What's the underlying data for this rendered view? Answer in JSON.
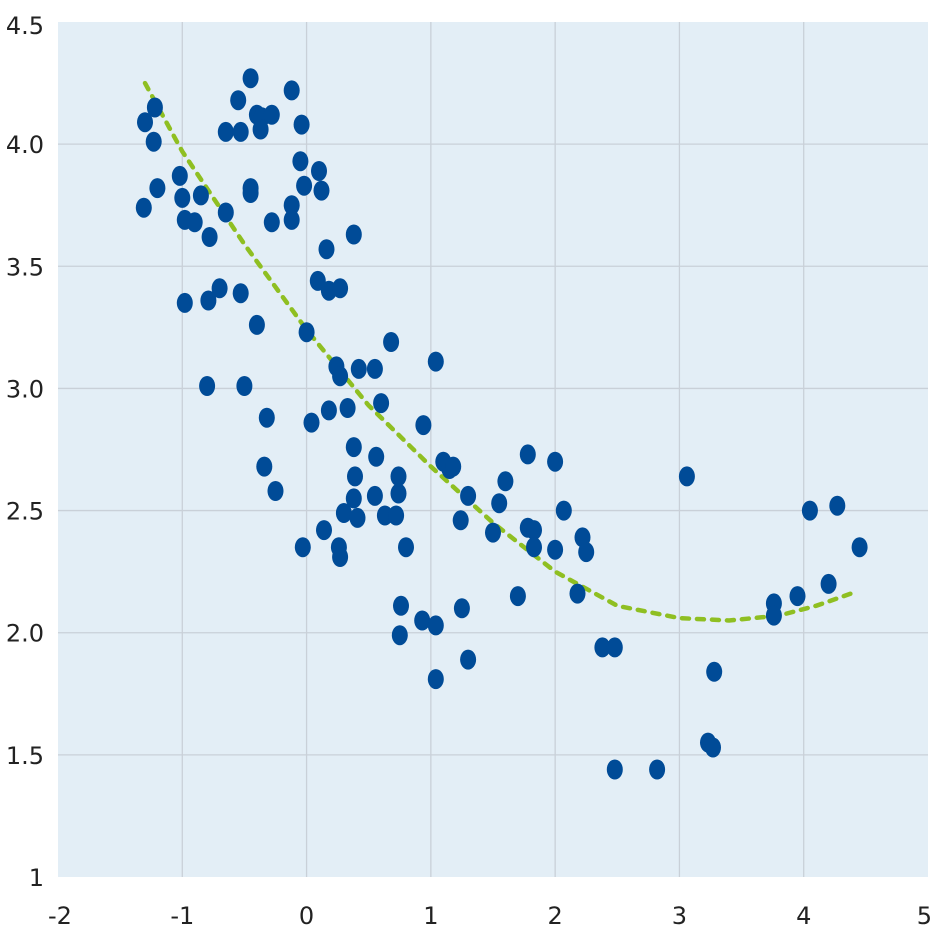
{
  "chart_data": {
    "type": "scatter",
    "title": "",
    "xlabel": "",
    "ylabel": "",
    "xlim": [
      -2,
      5
    ],
    "ylim": [
      1,
      4.5
    ],
    "x_ticks": [
      -2,
      -1,
      0,
      1,
      2,
      3,
      4,
      5
    ],
    "x_tick_labels": [
      "-2",
      "-1",
      "0",
      "1",
      "2",
      "3",
      "4",
      "5"
    ],
    "y_ticks": [
      1,
      1.5,
      2,
      2.5,
      3,
      3.5,
      4,
      4.5
    ],
    "y_tick_labels": [
      "1",
      "1.5",
      "2.0",
      "2.5",
      "3.0",
      "3.5",
      "4.0",
      "4.5"
    ],
    "grid": true,
    "colors": {
      "plot_background": "#e3eef6",
      "points": "#004b97",
      "trend": "#8fbf22",
      "grid": "#c9d0d8"
    },
    "points": [
      [
        -1.3,
        4.09
      ],
      [
        -1.22,
        4.15
      ],
      [
        -1.23,
        4.01
      ],
      [
        -1.2,
        3.82
      ],
      [
        -1.31,
        3.74
      ],
      [
        -1.02,
        3.87
      ],
      [
        -1.0,
        3.78
      ],
      [
        -0.98,
        3.69
      ],
      [
        -0.9,
        3.68
      ],
      [
        -0.85,
        3.79
      ],
      [
        -0.78,
        3.62
      ],
      [
        -0.98,
        3.35
      ],
      [
        -0.79,
        3.36
      ],
      [
        -0.7,
        3.41
      ],
      [
        -0.8,
        3.01
      ],
      [
        -0.65,
        3.72
      ],
      [
        -0.65,
        4.05
      ],
      [
        -0.53,
        4.05
      ],
      [
        -0.55,
        4.18
      ],
      [
        -0.45,
        4.27
      ],
      [
        -0.4,
        4.12
      ],
      [
        -0.36,
        4.11
      ],
      [
        -0.37,
        4.06
      ],
      [
        -0.28,
        4.12
      ],
      [
        -0.12,
        4.22
      ],
      [
        -0.45,
        3.82
      ],
      [
        -0.45,
        3.8
      ],
      [
        -0.28,
        3.68
      ],
      [
        -0.12,
        3.75
      ],
      [
        -0.12,
        3.69
      ],
      [
        -0.04,
        4.08
      ],
      [
        -0.05,
        3.93
      ],
      [
        -0.02,
        3.83
      ],
      [
        0.1,
        3.89
      ],
      [
        0.12,
        3.81
      ],
      [
        -0.53,
        3.39
      ],
      [
        -0.4,
        3.26
      ],
      [
        -0.5,
        3.01
      ],
      [
        -0.32,
        2.88
      ],
      [
        -0.34,
        2.68
      ],
      [
        -0.25,
        2.58
      ],
      [
        0.0,
        3.23
      ],
      [
        0.09,
        3.44
      ],
      [
        0.16,
        3.57
      ],
      [
        0.18,
        3.4
      ],
      [
        0.27,
        3.41
      ],
      [
        0.38,
        3.63
      ],
      [
        0.24,
        3.09
      ],
      [
        0.27,
        3.05
      ],
      [
        0.42,
        3.08
      ],
      [
        0.55,
        3.08
      ],
      [
        0.6,
        2.94
      ],
      [
        0.68,
        3.19
      ],
      [
        0.33,
        2.92
      ],
      [
        0.18,
        2.91
      ],
      [
        0.04,
        2.86
      ],
      [
        0.38,
        2.76
      ],
      [
        0.39,
        2.64
      ],
      [
        0.38,
        2.55
      ],
      [
        0.56,
        2.72
      ],
      [
        0.55,
        2.56
      ],
      [
        0.3,
        2.49
      ],
      [
        0.41,
        2.47
      ],
      [
        0.63,
        2.48
      ],
      [
        0.72,
        2.48
      ],
      [
        0.74,
        2.57
      ],
      [
        0.74,
        2.64
      ],
      [
        0.14,
        2.42
      ],
      [
        -0.03,
        2.35
      ],
      [
        0.26,
        2.35
      ],
      [
        0.27,
        2.31
      ],
      [
        0.8,
        2.35
      ],
      [
        0.76,
        2.11
      ],
      [
        0.75,
        1.99
      ],
      [
        0.94,
        2.85
      ],
      [
        1.04,
        3.11
      ],
      [
        1.1,
        2.7
      ],
      [
        1.15,
        2.67
      ],
      [
        1.18,
        2.68
      ],
      [
        1.3,
        2.56
      ],
      [
        1.24,
        2.46
      ],
      [
        1.5,
        2.41
      ],
      [
        1.55,
        2.53
      ],
      [
        1.6,
        2.62
      ],
      [
        1.78,
        2.73
      ],
      [
        1.78,
        2.43
      ],
      [
        1.83,
        2.42
      ],
      [
        1.83,
        2.35
      ],
      [
        2.0,
        2.7
      ],
      [
        2.07,
        2.5
      ],
      [
        2.0,
        2.34
      ],
      [
        2.22,
        2.39
      ],
      [
        2.25,
        2.33
      ],
      [
        1.7,
        2.15
      ],
      [
        2.18,
        2.16
      ],
      [
        0.93,
        2.05
      ],
      [
        1.04,
        2.03
      ],
      [
        1.25,
        2.1
      ],
      [
        1.3,
        1.89
      ],
      [
        1.04,
        1.81
      ],
      [
        2.38,
        1.94
      ],
      [
        2.48,
        1.94
      ],
      [
        2.48,
        1.44
      ],
      [
        2.82,
        1.44
      ],
      [
        3.06,
        2.64
      ],
      [
        3.23,
        1.55
      ],
      [
        3.27,
        1.53
      ],
      [
        3.28,
        1.84
      ],
      [
        3.76,
        2.12
      ],
      [
        3.76,
        2.07
      ],
      [
        3.95,
        2.15
      ],
      [
        4.05,
        2.5
      ],
      [
        4.2,
        2.2
      ],
      [
        4.27,
        2.52
      ],
      [
        4.45,
        2.35
      ]
    ],
    "trendline": [
      [
        -1.3,
        4.25
      ],
      [
        -1.0,
        3.97
      ],
      [
        -0.5,
        3.59
      ],
      [
        0.0,
        3.24
      ],
      [
        0.5,
        2.93
      ],
      [
        1.0,
        2.68
      ],
      [
        1.5,
        2.45
      ],
      [
        2.0,
        2.25
      ],
      [
        2.5,
        2.11
      ],
      [
        3.0,
        2.06
      ],
      [
        3.4,
        2.05
      ],
      [
        3.8,
        2.07
      ],
      [
        4.1,
        2.11
      ],
      [
        4.38,
        2.16
      ]
    ]
  }
}
